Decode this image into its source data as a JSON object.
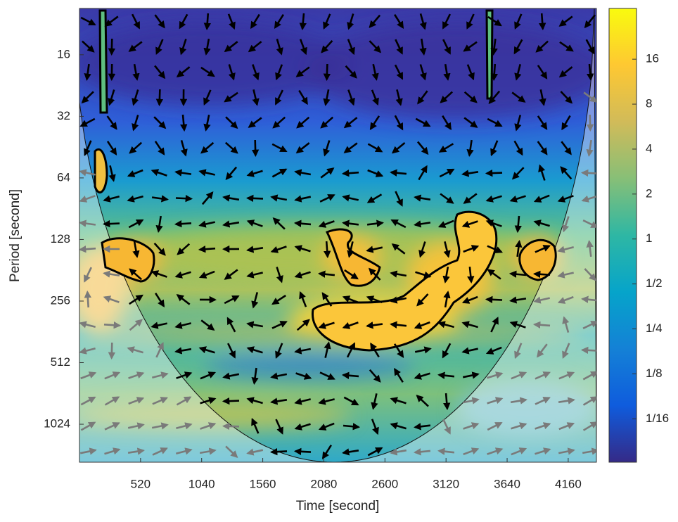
{
  "chart_data": {
    "type": "heatmap",
    "xlabel": "Time [second]",
    "ylabel": "Period [second]",
    "xlim": [
      0,
      4400
    ],
    "xticks": [
      520,
      1040,
      1560,
      2080,
      2600,
      3120,
      3640,
      4160
    ],
    "ylim": [
      9.5,
      1570
    ],
    "yticks": [
      16,
      32,
      64,
      128,
      256,
      512,
      1024
    ],
    "yscale": "log",
    "y_inverted": true,
    "colorbar": {
      "lim": [
        0.032,
        35
      ],
      "scale": "log",
      "colormap": "parula",
      "ticks": [
        16,
        8,
        4,
        2,
        1,
        {
          "value": 0.5,
          "label": "1/2"
        },
        {
          "value": 0.25,
          "label": "1/4"
        },
        {
          "value": 0.125,
          "label": "1/8"
        },
        {
          "value": 0.0625,
          "label": "1/16"
        }
      ]
    }
  }
}
